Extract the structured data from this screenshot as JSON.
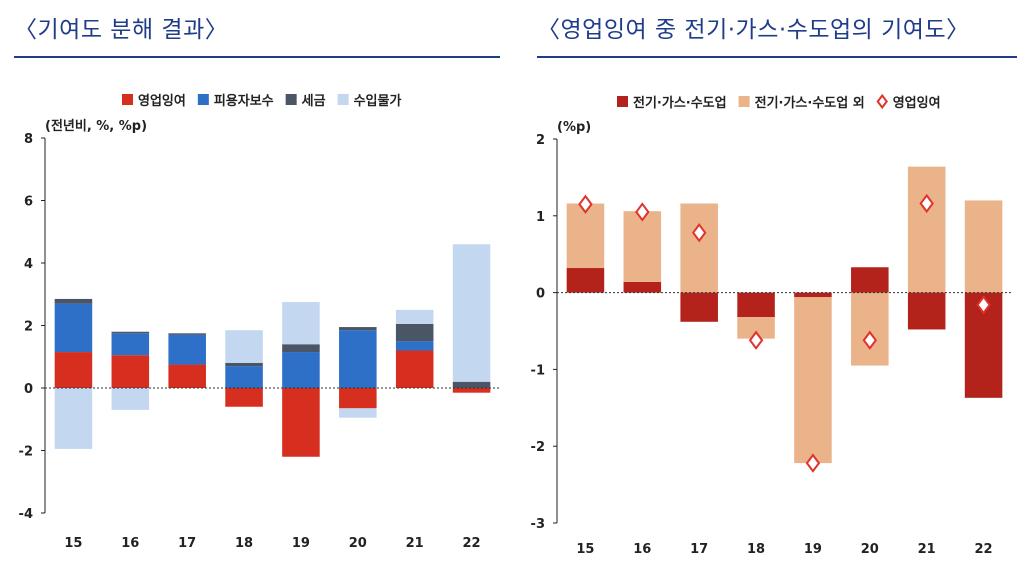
{
  "left_panel": {
    "title": "〈기여도 분해 결과〉"
  },
  "right_panel": {
    "title": "〈영업잉여 중 전기·가스·수도업의 기여도〉"
  },
  "chart_data": [
    {
      "type": "bar",
      "stacked": true,
      "unit_label": "(전년비, %, %p)",
      "categories": [
        "15",
        "16",
        "17",
        "18",
        "19",
        "20",
        "21",
        "22"
      ],
      "ylim": [
        -4,
        8
      ],
      "yticks": [
        -4,
        -2,
        0,
        2,
        4,
        6,
        8
      ],
      "legend_position": "top",
      "series": [
        {
          "name": "영업잉여",
          "color": "#d62e1f",
          "values": [
            1.15,
            1.05,
            0.75,
            -0.6,
            -2.2,
            -0.65,
            1.2,
            -0.15
          ]
        },
        {
          "name": "피용자보수",
          "color": "#2e6fc7",
          "values": [
            1.55,
            0.7,
            0.95,
            0.7,
            1.15,
            1.85,
            0.3,
            0.0
          ]
        },
        {
          "name": "세금",
          "color": "#4a5566",
          "values": [
            0.15,
            0.05,
            0.05,
            0.1,
            0.25,
            0.1,
            0.55,
            0.2
          ]
        },
        {
          "name": "수입물가",
          "color": "#c3d8f0",
          "values": [
            -1.95,
            -0.7,
            0.0,
            1.05,
            1.35,
            -0.3,
            0.45,
            4.4
          ]
        }
      ]
    },
    {
      "type": "bar",
      "stacked": true,
      "unit_label": "(%p)",
      "categories": [
        "15",
        "16",
        "17",
        "18",
        "19",
        "20",
        "21",
        "22"
      ],
      "ylim": [
        -3,
        2
      ],
      "yticks": [
        -3,
        -2,
        -1,
        0,
        1,
        2
      ],
      "legend_position": "top",
      "series": [
        {
          "name": "전기·가스·수도업",
          "color": "#b3231c",
          "values": [
            0.32,
            0.14,
            -0.38,
            -0.32,
            -0.06,
            0.33,
            -0.48,
            -1.37
          ]
        },
        {
          "name": "전기·가스·수도업 외",
          "color": "#eab38a",
          "values": [
            0.84,
            0.92,
            1.16,
            -0.28,
            -2.16,
            -0.95,
            1.64,
            1.2
          ]
        }
      ],
      "markers": {
        "name": "영업잉여",
        "color": "#e0332b",
        "values": [
          1.15,
          1.05,
          0.78,
          -0.62,
          -2.22,
          -0.62,
          1.16,
          -0.16
        ]
      }
    }
  ]
}
